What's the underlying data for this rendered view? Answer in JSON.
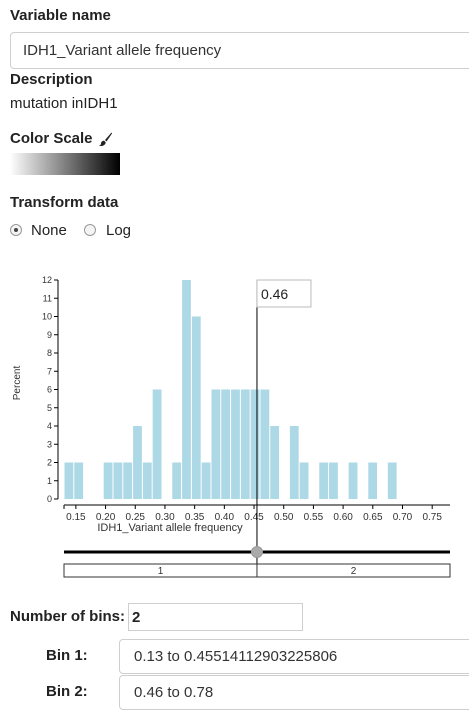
{
  "variable": {
    "label": "Variable name",
    "value": "IDH1_Variant allele frequency"
  },
  "description": {
    "label": "Description",
    "text": "mutation inIDH1"
  },
  "color_scale": {
    "label": "Color Scale",
    "icon": "brush-icon",
    "gradient_start": "#ffffff",
    "gradient_end": "#000000"
  },
  "transform": {
    "label": "Transform data",
    "options": [
      {
        "label": "None",
        "checked": true
      },
      {
        "label": "Log",
        "checked": false
      }
    ]
  },
  "threshold_value": "0.46",
  "bin_ranges": [
    "1",
    "2"
  ],
  "bins": {
    "number_label": "Number of bins:",
    "number_value": "2",
    "items": [
      {
        "label": "Bin 1:",
        "value": "0.13 to 0.45514112903225806"
      },
      {
        "label": "Bin 2:",
        "value": "0.46 to 0.78"
      }
    ]
  },
  "chart_data": {
    "type": "bar",
    "xlabel": "IDH1_Variant allele frequency",
    "ylabel": "Percent",
    "xlim": [
      0.13,
      0.78
    ],
    "ylim": [
      0,
      12
    ],
    "x_ticks": [
      "0.15",
      "0.20",
      "0.25",
      "0.30",
      "0.35",
      "0.40",
      "0.45",
      "0.50",
      "0.55",
      "0.60",
      "0.65",
      "0.70",
      "0.75"
    ],
    "y_ticks": [
      "0",
      "1",
      "2",
      "3",
      "4",
      "5",
      "6",
      "7",
      "8",
      "9",
      "10",
      "11",
      "12"
    ],
    "bin_width": 0.0165,
    "bin_starts": [
      0.13,
      0.1465,
      0.163,
      0.1795,
      0.196,
      0.2125,
      0.229,
      0.2455,
      0.262,
      0.2785,
      0.295,
      0.3115,
      0.328,
      0.3445,
      0.361,
      0.3775,
      0.394,
      0.4105,
      0.427,
      0.4435,
      0.46,
      0.4765,
      0.493,
      0.5095,
      0.526,
      0.5425,
      0.559,
      0.5755,
      0.592,
      0.6085,
      0.625,
      0.6415,
      0.658,
      0.6745,
      0.691,
      0.7075
    ],
    "values": [
      2,
      2,
      0,
      0,
      2,
      2,
      2,
      4,
      2,
      6,
      0,
      2,
      12,
      10,
      2,
      6,
      6,
      6,
      6,
      6,
      6,
      4,
      0,
      4,
      2,
      0,
      2,
      2,
      0,
      2,
      0,
      2,
      0,
      2,
      0,
      0
    ],
    "bar_color": "#add8e6",
    "threshold": 0.46
  }
}
